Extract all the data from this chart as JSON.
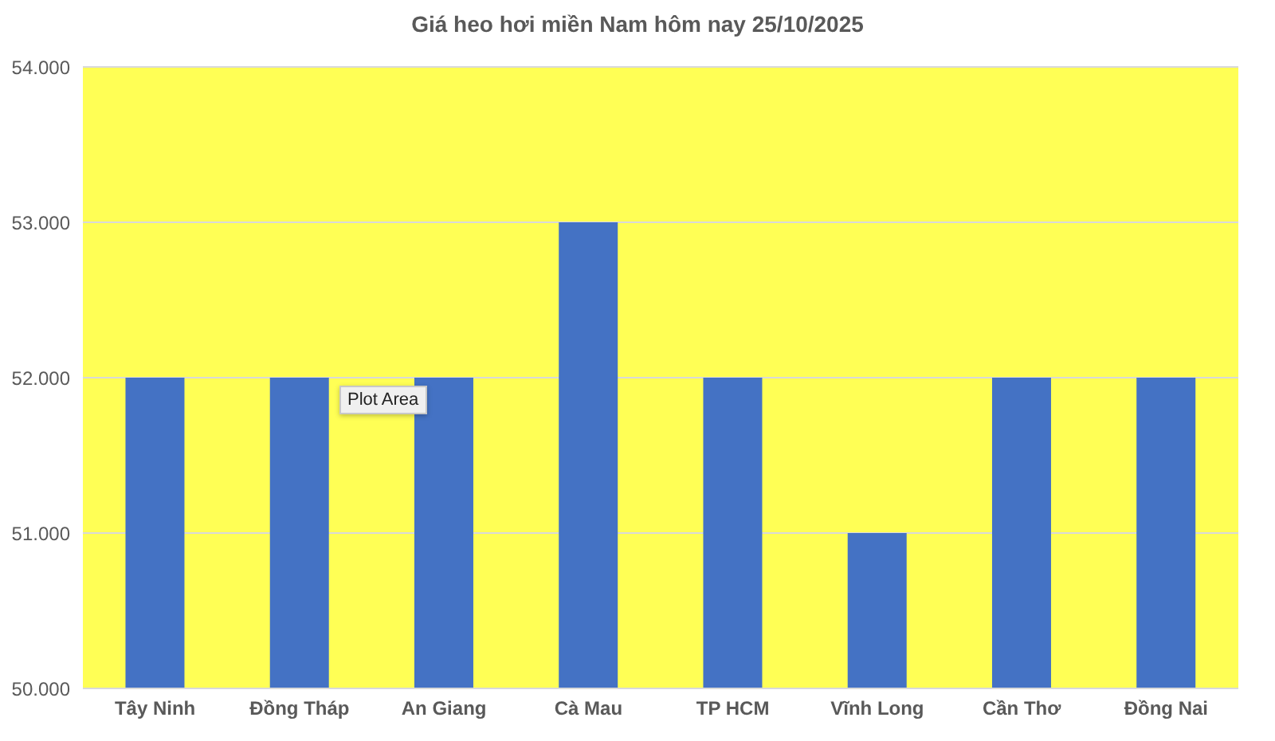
{
  "chart_data": {
    "type": "bar",
    "title": "Giá heo hơi miền Nam hôm nay 25/10/2025",
    "categories": [
      "Tây Ninh",
      "Đồng Tháp",
      "An Giang",
      "Cà Mau",
      "TP HCM",
      "Vĩnh Long",
      "Cần Thơ",
      "Đồng Nai"
    ],
    "values": [
      52000,
      52000,
      52000,
      53000,
      52000,
      51000,
      52000,
      52000
    ],
    "color": "#4472c4",
    "ylim": [
      50000,
      54000
    ],
    "yticks": [
      {
        "value": 50000,
        "label": "50.000"
      },
      {
        "value": 51000,
        "label": "51.000"
      },
      {
        "value": 52000,
        "label": "52.000"
      },
      {
        "value": 53000,
        "label": "53.000"
      },
      {
        "value": 54000,
        "label": "54.000"
      }
    ],
    "grid": "y",
    "annotations": [
      "Plot Area"
    ]
  }
}
